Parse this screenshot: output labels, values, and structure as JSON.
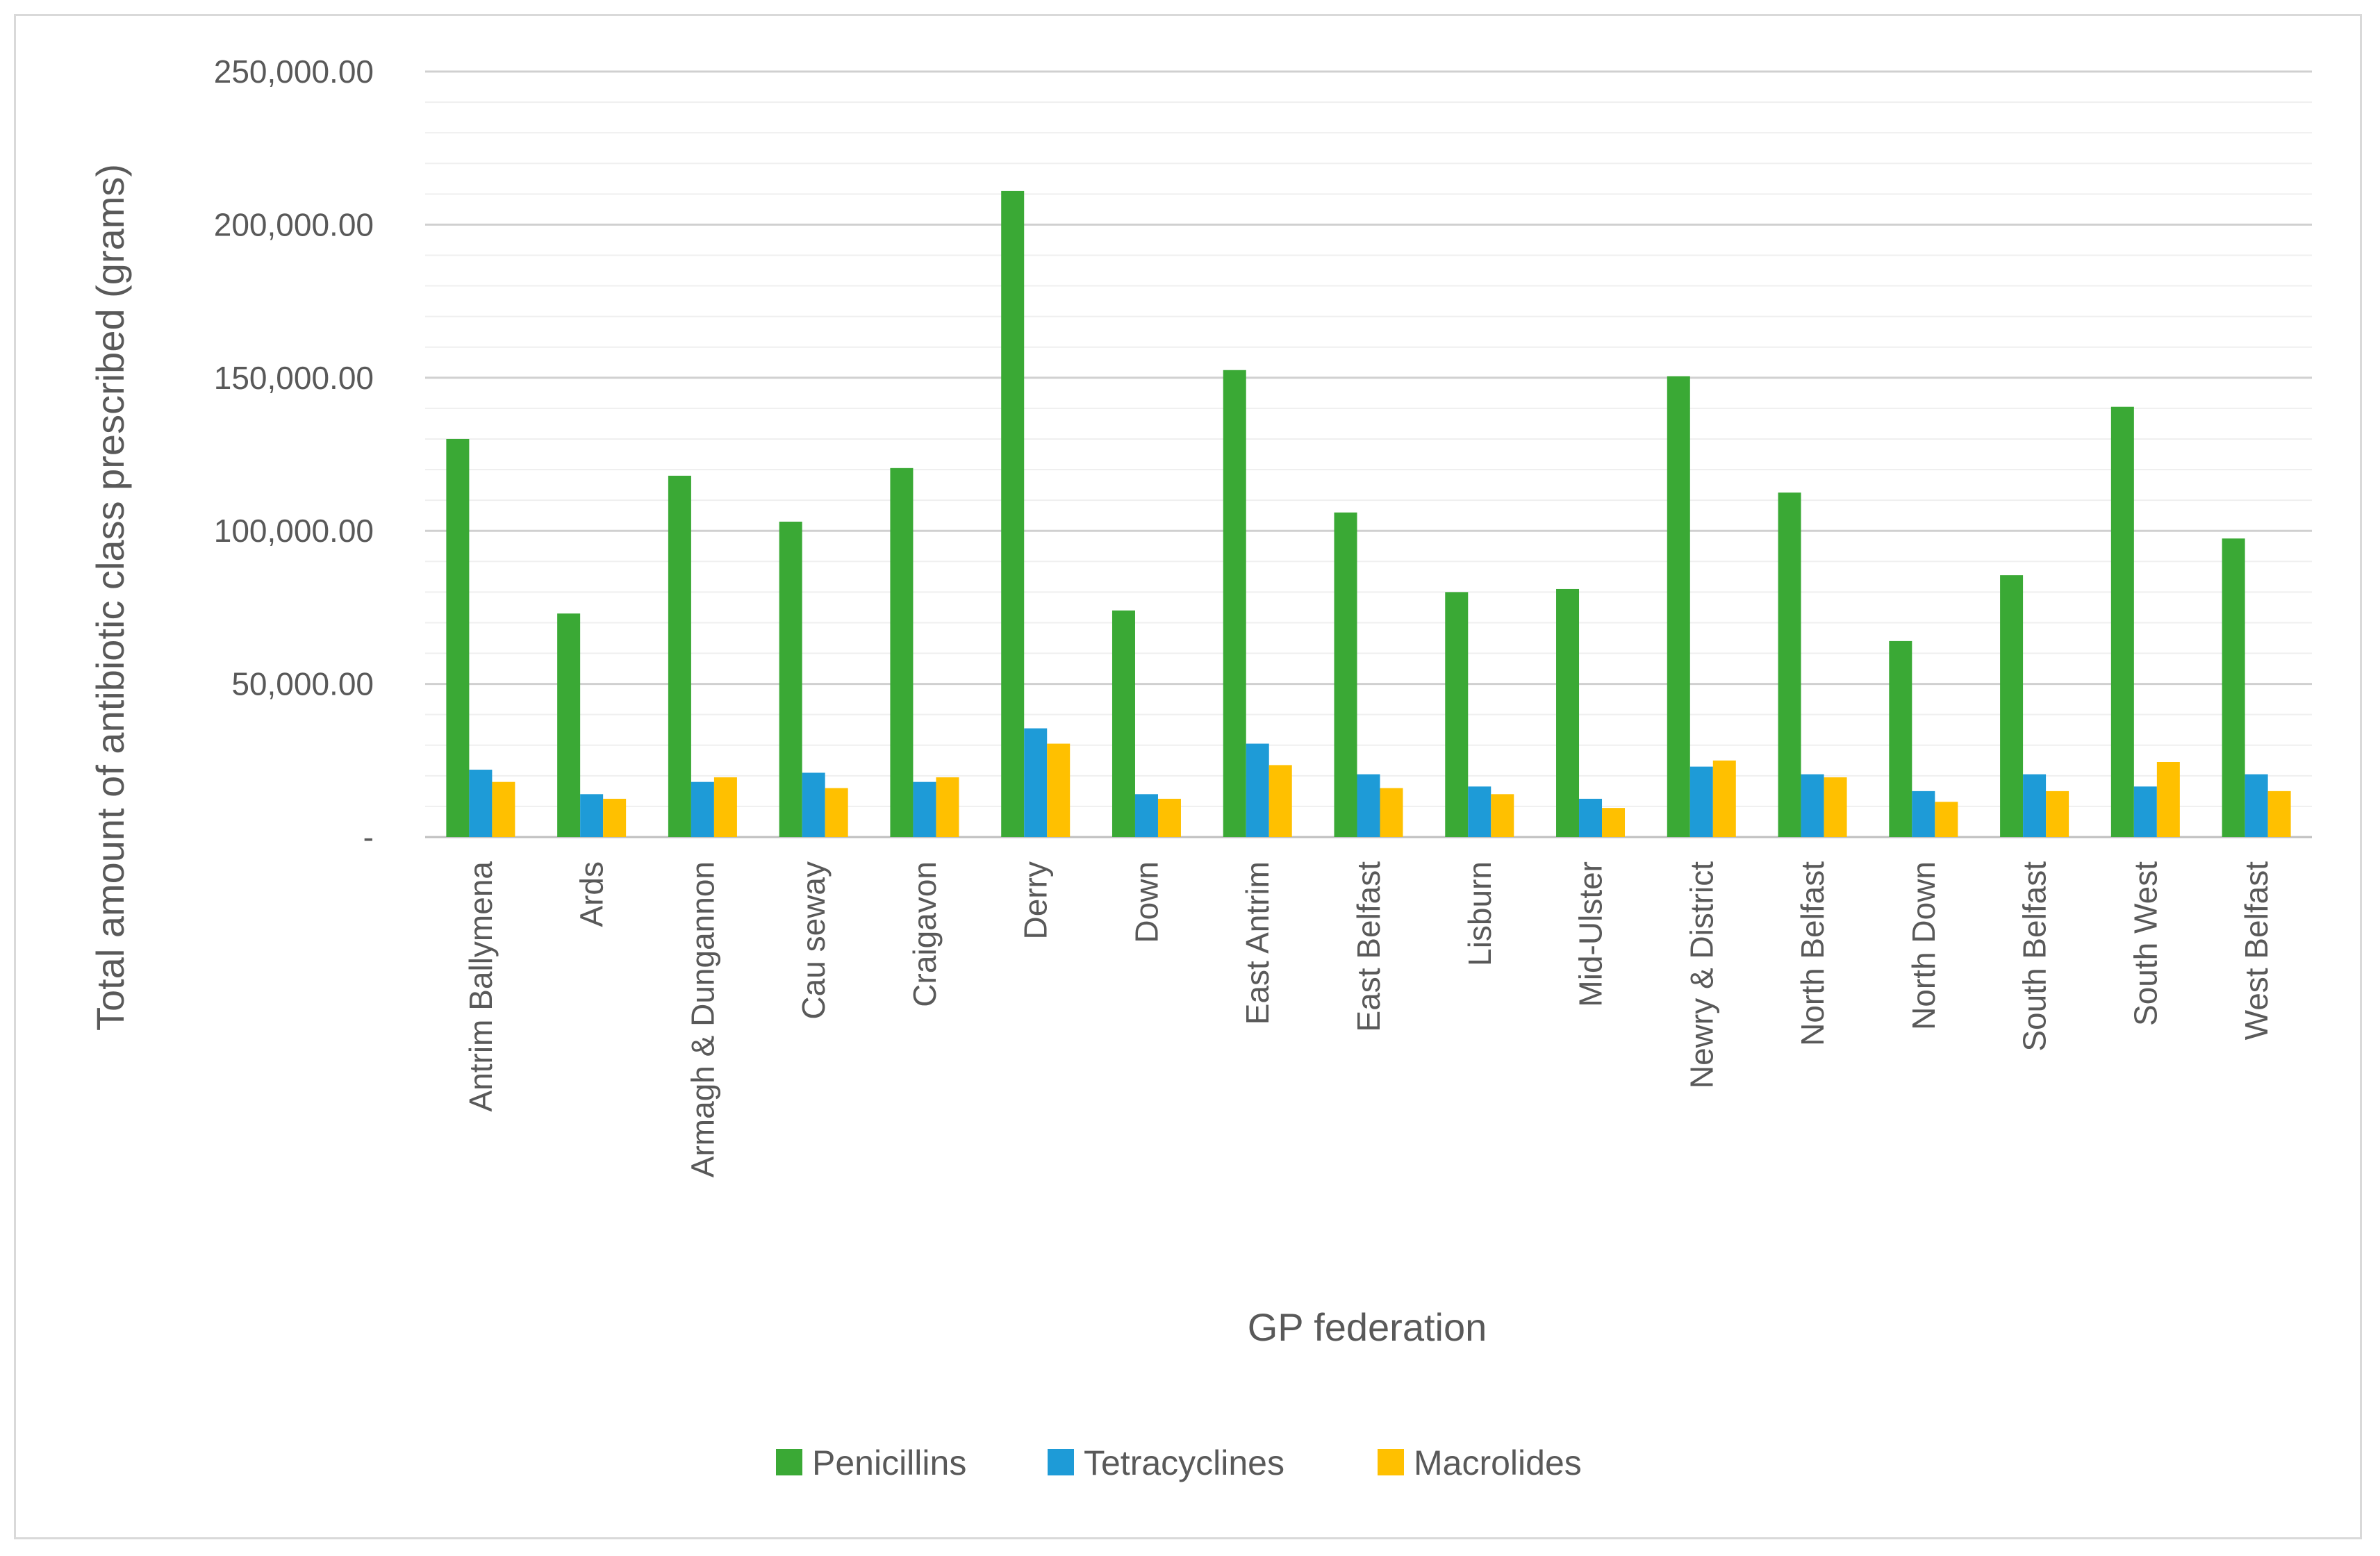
{
  "chart_data": {
    "type": "bar",
    "title": "",
    "xlabel": "GP federation",
    "ylabel": "Total amount of antibiotic class prescribed (grams)",
    "ylim": [
      0,
      250000
    ],
    "major_ticks": [
      0,
      50000,
      100000,
      150000,
      200000,
      250000
    ],
    "tick_labels": [
      "-",
      "50,000.00",
      "100,000.00",
      "150,000.00",
      "200,000.00",
      "250,000.00"
    ],
    "minor_tick_step": 10000,
    "grid": true,
    "legend_position": "bottom",
    "categories": [
      "Antrim Ballymena",
      "Ards",
      "Armagh & Dungannon",
      "Cau seway",
      "Craigavon",
      "Derry",
      "Down",
      "East Antrim",
      "East Belfast",
      "Lisburn",
      "Mid-Ulster",
      "Newry & District",
      "North Belfast",
      "North Down",
      "South Belfast",
      "South West",
      "West Belfast"
    ],
    "series": [
      {
        "name": "Penicillins",
        "color": "#3aa935",
        "values": [
          130000,
          73000,
          118000,
          103000,
          120500,
          211000,
          74000,
          152500,
          106000,
          80000,
          81000,
          150500,
          112500,
          64000,
          85500,
          140500,
          97500
        ]
      },
      {
        "name": "Tetracyclines",
        "color": "#1e9bd7",
        "values": [
          22000,
          14000,
          18000,
          21000,
          18000,
          35500,
          14000,
          30500,
          20500,
          16500,
          12500,
          23000,
          20500,
          15000,
          20500,
          16500,
          20500
        ]
      },
      {
        "name": "Macrolides",
        "color": "#ffc000",
        "values": [
          18000,
          12500,
          19500,
          16000,
          19500,
          30500,
          12500,
          23500,
          16000,
          14000,
          9500,
          25000,
          19500,
          11500,
          15000,
          24500,
          15000
        ]
      }
    ]
  }
}
